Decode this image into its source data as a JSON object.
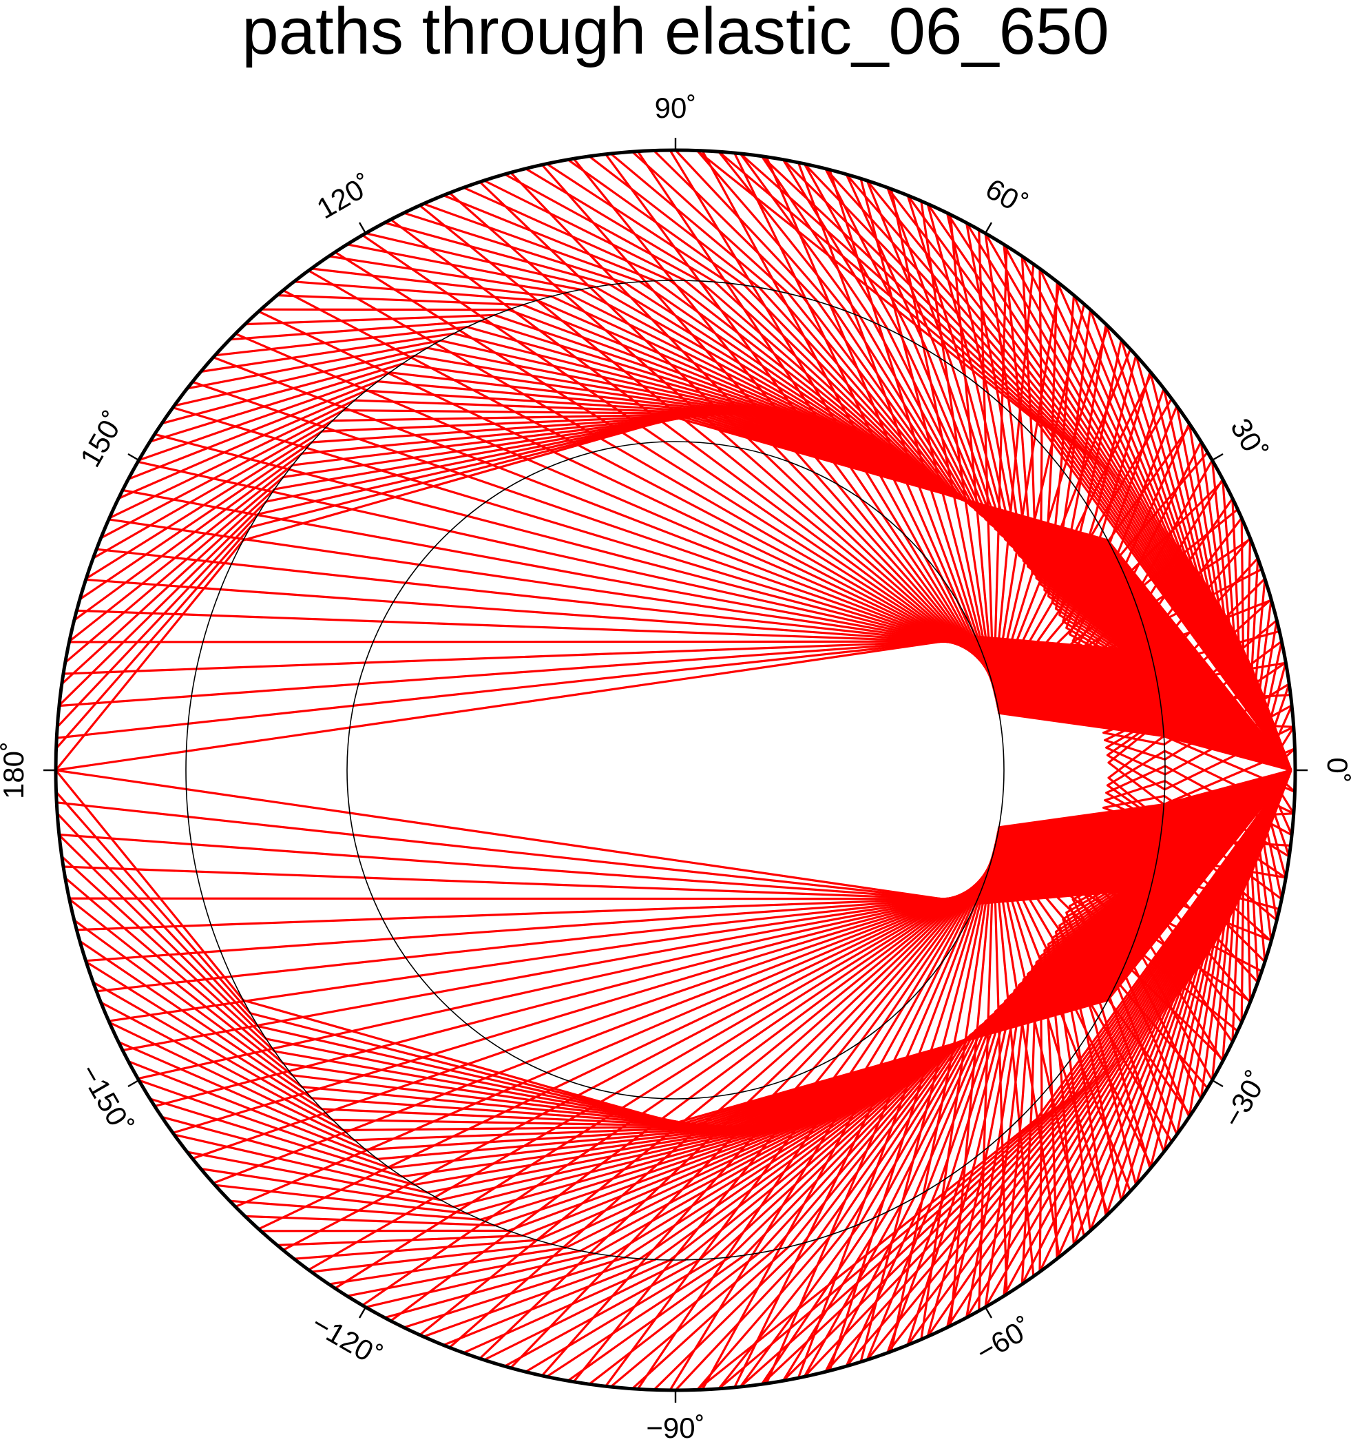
{
  "title": "paths through elastic_06_650",
  "angle_labels": [
    {
      "deg": 0,
      "text": "0˚"
    },
    {
      "deg": 30,
      "text": "30˚"
    },
    {
      "deg": 60,
      "text": "60˚"
    },
    {
      "deg": 90,
      "text": "90˚"
    },
    {
      "deg": 120,
      "text": "120˚"
    },
    {
      "deg": 150,
      "text": "150˚"
    },
    {
      "deg": 180,
      "text": "180˚"
    },
    {
      "deg": -150,
      "text": "−150˚"
    },
    {
      "deg": -120,
      "text": "−120˚"
    },
    {
      "deg": -90,
      "text": "−90˚"
    },
    {
      "deg": -60,
      "text": "−60˚"
    },
    {
      "deg": -30,
      "text": "−30˚"
    }
  ],
  "colors": {
    "path": "#ff0000",
    "outline": "#000000",
    "interface": "#000000",
    "background": "#ffffff"
  },
  "chart_data": {
    "type": "polar",
    "title": "paths through elastic_06_650",
    "angular_range": [
      -180,
      180
    ],
    "source_angle_deg": 0,
    "interfaces_radius_fraction": [
      0.79,
      0.53
    ],
    "outer_layer": {
      "ray_deg_min": 2,
      "ray_deg_max": 88,
      "step_deg": 2
    },
    "middle_layer": {
      "ray_deg_min": 2,
      "ray_deg_max": 180,
      "step_deg": 2
    },
    "core_layer": {
      "ray_deg_min": 3,
      "ray_deg_max": 180,
      "step_deg": 3
    }
  }
}
